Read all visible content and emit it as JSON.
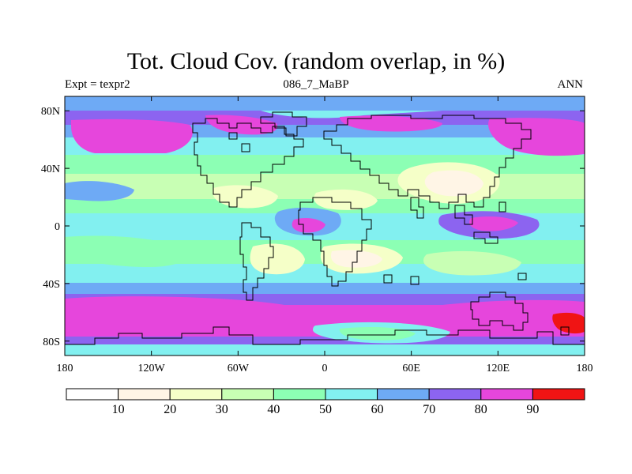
{
  "title": "Tot. Cloud Cov. (random overlap, in %)",
  "left_label": "Expt = texpr2",
  "center_label": "086_7_MaBP",
  "right_label": "ANN",
  "map": {
    "projection": "cylindrical-equidistant",
    "lon_range": [
      -180,
      180
    ],
    "lat_range": [
      -90,
      90
    ],
    "lat_tick_labels": [
      {
        "value": 80,
        "text": "80N"
      },
      {
        "value": 40,
        "text": "40N"
      },
      {
        "value": 0,
        "text": "0"
      },
      {
        "value": -40,
        "text": "40S"
      },
      {
        "value": -80,
        "text": "80S"
      }
    ],
    "lon_tick_labels": [
      {
        "value": -180,
        "text": "180"
      },
      {
        "value": -120,
        "text": "120W"
      },
      {
        "value": -60,
        "text": "60W"
      },
      {
        "value": 0,
        "text": "0"
      },
      {
        "value": 60,
        "text": "60E"
      },
      {
        "value": 120,
        "text": "120E"
      },
      {
        "value": 180,
        "text": "180"
      }
    ],
    "coastline_color": "#000000"
  },
  "colorbar": {
    "levels": [
      10,
      20,
      30,
      40,
      50,
      60,
      70,
      80,
      90
    ],
    "level_labels": [
      "10",
      "20",
      "30",
      "40",
      "50",
      "60",
      "70",
      "80",
      "90"
    ],
    "colors": [
      "#ffffff",
      "#fff5e6",
      "#f5ffc8",
      "#c8ffb4",
      "#8cffb4",
      "#82f0f0",
      "#6eaaf5",
      "#8c64f0",
      "#e646dc",
      "#f01414"
    ]
  }
}
